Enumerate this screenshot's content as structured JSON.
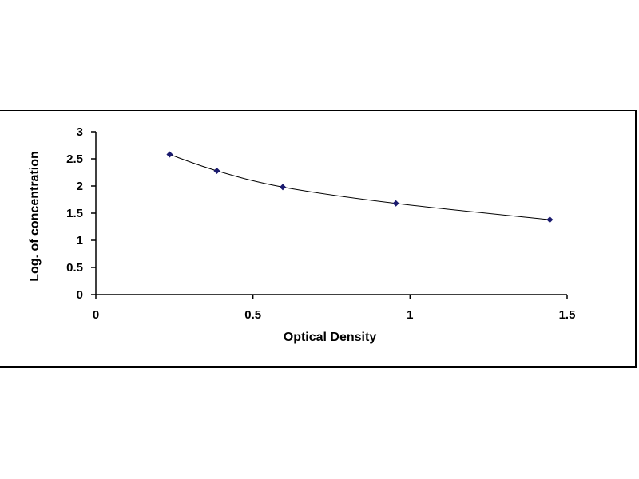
{
  "chart_data": {
    "type": "scatter",
    "title": "",
    "xlabel": "Optical Density",
    "ylabel": "Log. of concentration",
    "xlim": [
      0,
      1.5
    ],
    "ylim": [
      0,
      3
    ],
    "x_ticks": [
      "0",
      "0.5",
      "1",
      "1.5"
    ],
    "y_ticks": [
      "0",
      "0.5",
      "1",
      "1.5",
      "2",
      "2.5",
      "3"
    ],
    "grid": false,
    "legend": "none",
    "series": [
      {
        "marker": "diamond",
        "color": "#1a1a6e",
        "line": "smooth",
        "x": [
          0.235,
          0.385,
          0.595,
          0.955,
          1.445
        ],
        "y": [
          2.58,
          2.28,
          1.98,
          1.68,
          1.38
        ]
      }
    ]
  }
}
